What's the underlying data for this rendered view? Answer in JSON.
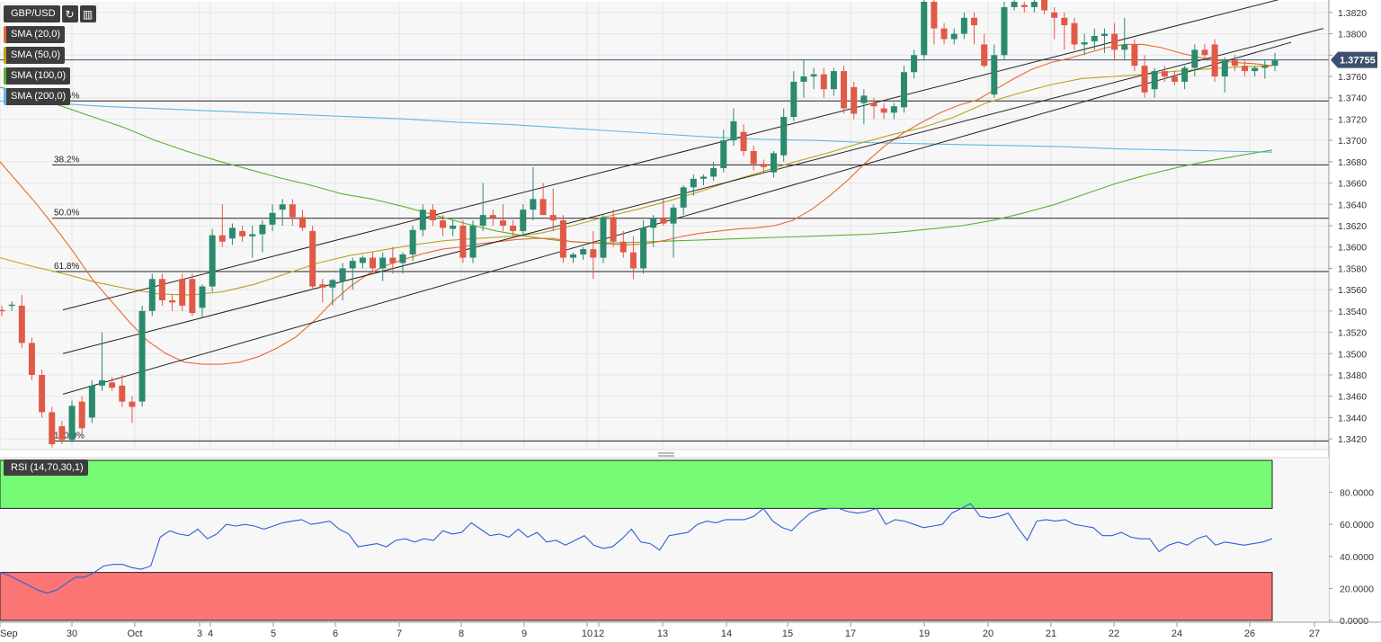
{
  "toolbar": {
    "symbol": "GBP/USD",
    "refresh_icon": "refresh-icon",
    "bars_icon": "bar-chart-icon"
  },
  "indicators": [
    {
      "label": "SMA (20,0)",
      "color": "#e8692c"
    },
    {
      "label": "SMA (50,0)",
      "color": "#b9a11c"
    },
    {
      "label": "SMA (100,0)",
      "color": "#58b12d"
    },
    {
      "label": "SMA (200,0)",
      "color": "#5fb6ea"
    }
  ],
  "rsi_label": "RSI (14,70,30,1)",
  "colors": {
    "up": "#2b8a6e",
    "down": "#e05a47",
    "sma20": "#e8692c",
    "sma50": "#b9a11c",
    "sma100": "#58b12d",
    "sma200": "#5fb6ea",
    "rsi": "#2d5fd6",
    "overbought": "#77fb77",
    "oversold": "#fc7575",
    "price_tag": "#3b4f6e"
  },
  "chart_data": [
    {
      "type": "candlestick",
      "title": "GBP/USD",
      "ylim": [
        1.341,
        1.383
      ],
      "yticks": [
        "1.3420",
        "1.3440",
        "1.3460",
        "1.3480",
        "1.3500",
        "1.3520",
        "1.3540",
        "1.3560",
        "1.3580",
        "1.3600",
        "1.3620",
        "1.3640",
        "1.3660",
        "1.3680",
        "1.3700",
        "1.3720",
        "1.3740",
        "1.3760",
        "1.3780",
        "1.3800",
        "1.3820"
      ],
      "xticks": [
        "Sep",
        "30",
        "Oct",
        "3",
        "4",
        "5",
        "6",
        "7",
        "8",
        "9",
        "10",
        "12",
        "13",
        "14",
        "15",
        "17",
        "19",
        "20",
        "21",
        "22",
        "24",
        "26",
        "27"
      ],
      "current_price": "1.37755",
      "fibonacci": [
        {
          "label": "23.6%",
          "price": 1.3737
        },
        {
          "label": "38.2%",
          "price": 1.3677
        },
        {
          "label": "50.0%",
          "price": 1.3627
        },
        {
          "label": "61.8%",
          "price": 1.3577
        },
        {
          "label": "100.0%",
          "price": 1.3418
        }
      ],
      "candles": [
        [
          1.3541,
          1.3545,
          1.3535,
          1.354
        ],
        [
          1.3545,
          1.3549,
          1.354,
          1.3546
        ],
        [
          1.3545,
          1.3555,
          1.3505,
          1.351
        ],
        [
          1.351,
          1.3515,
          1.3475,
          1.348
        ],
        [
          1.348,
          1.3485,
          1.344,
          1.3445
        ],
        [
          1.3445,
          1.345,
          1.3412,
          1.3415
        ],
        [
          1.3432,
          1.3437,
          1.3415,
          1.3419
        ],
        [
          1.3419,
          1.3456,
          1.3417,
          1.3451
        ],
        [
          1.3455,
          1.346,
          1.3425,
          1.343
        ],
        [
          1.344,
          1.3475,
          1.3435,
          1.347
        ],
        [
          1.347,
          1.352,
          1.3465,
          1.3475
        ],
        [
          1.3473,
          1.3478,
          1.3465,
          1.3468
        ],
        [
          1.347,
          1.348,
          1.345,
          1.3455
        ],
        [
          1.3455,
          1.346,
          1.3435,
          1.345
        ],
        [
          1.3455,
          1.3545,
          1.345,
          1.354
        ],
        [
          1.354,
          1.3575,
          1.3535,
          1.357
        ],
        [
          1.357,
          1.3575,
          1.3545,
          1.355
        ],
        [
          1.355,
          1.3555,
          1.354,
          1.3548
        ],
        [
          1.357,
          1.3575,
          1.354,
          1.3545
        ],
        [
          1.357,
          1.3575,
          1.3535,
          1.3538
        ],
        [
          1.3543,
          1.3565,
          1.3533,
          1.3563
        ],
        [
          1.3563,
          1.3617,
          1.3558,
          1.3611
        ],
        [
          1.3611,
          1.364,
          1.36,
          1.3605
        ],
        [
          1.3608,
          1.3622,
          1.3602,
          1.3618
        ],
        [
          1.3615,
          1.362,
          1.3605,
          1.361
        ],
        [
          1.361,
          1.362,
          1.359,
          1.3612
        ],
        [
          1.3612,
          1.3625,
          1.3595,
          1.3621
        ],
        [
          1.3621,
          1.364,
          1.3615,
          1.3632
        ],
        [
          1.3635,
          1.3645,
          1.362,
          1.364
        ],
        [
          1.364,
          1.3645,
          1.362,
          1.3628
        ],
        [
          1.3628,
          1.3635,
          1.3615,
          1.3618
        ],
        [
          1.3615,
          1.362,
          1.356,
          1.3563
        ],
        [
          1.3565,
          1.357,
          1.3548,
          1.3562
        ],
        [
          1.3562,
          1.357,
          1.3545,
          1.3569
        ],
        [
          1.3568,
          1.3585,
          1.355,
          1.358
        ],
        [
          1.358,
          1.359,
          1.356,
          1.3587
        ],
        [
          1.3585,
          1.3592,
          1.358,
          1.359
        ],
        [
          1.359,
          1.3595,
          1.3575,
          1.358
        ],
        [
          1.358,
          1.3595,
          1.3568,
          1.359
        ],
        [
          1.359,
          1.36,
          1.3575,
          1.3585
        ],
        [
          1.3585,
          1.3595,
          1.3575,
          1.3593
        ],
        [
          1.3593,
          1.362,
          1.3587,
          1.3616
        ],
        [
          1.3616,
          1.364,
          1.361,
          1.3635
        ],
        [
          1.3635,
          1.364,
          1.362,
          1.3625
        ],
        [
          1.3625,
          1.363,
          1.361,
          1.3618
        ],
        [
          1.3617,
          1.3625,
          1.361,
          1.362
        ],
        [
          1.362,
          1.3625,
          1.3585,
          1.359
        ],
        [
          1.359,
          1.3625,
          1.3585,
          1.362
        ],
        [
          1.362,
          1.366,
          1.3615,
          1.363
        ],
        [
          1.363,
          1.3635,
          1.362,
          1.3627
        ],
        [
          1.3625,
          1.364,
          1.3615,
          1.362
        ],
        [
          1.362,
          1.3625,
          1.361,
          1.3615
        ],
        [
          1.3615,
          1.364,
          1.361,
          1.3635
        ],
        [
          1.3635,
          1.3675,
          1.3625,
          1.3645
        ],
        [
          1.3645,
          1.366,
          1.363,
          1.363
        ],
        [
          1.363,
          1.3655,
          1.3615,
          1.3625
        ],
        [
          1.3625,
          1.363,
          1.3585,
          1.359
        ],
        [
          1.359,
          1.3595,
          1.3585,
          1.3593
        ],
        [
          1.3593,
          1.36,
          1.3588,
          1.3598
        ],
        [
          1.3598,
          1.3615,
          1.357,
          1.359
        ],
        [
          1.359,
          1.363,
          1.3585,
          1.3628
        ],
        [
          1.3628,
          1.3635,
          1.36,
          1.3605
        ],
        [
          1.3605,
          1.3615,
          1.359,
          1.3595
        ],
        [
          1.3595,
          1.361,
          1.357,
          1.358
        ],
        [
          1.358,
          1.3625,
          1.3575,
          1.3618
        ],
        [
          1.3618,
          1.363,
          1.36,
          1.3627
        ],
        [
          1.3627,
          1.3645,
          1.362,
          1.3622
        ],
        [
          1.3622,
          1.364,
          1.359,
          1.3637
        ],
        [
          1.3637,
          1.3658,
          1.363,
          1.3656
        ],
        [
          1.3656,
          1.3668,
          1.3648,
          1.3664
        ],
        [
          1.3664,
          1.3668,
          1.3658,
          1.3666
        ],
        [
          1.3666,
          1.368,
          1.3662,
          1.3674
        ],
        [
          1.3674,
          1.371,
          1.367,
          1.37
        ],
        [
          1.37,
          1.373,
          1.3695,
          1.3718
        ],
        [
          1.3708,
          1.3715,
          1.3685,
          1.369
        ],
        [
          1.369,
          1.3695,
          1.3672,
          1.3678
        ],
        [
          1.3678,
          1.3682,
          1.367,
          1.3675
        ],
        [
          1.367,
          1.369,
          1.3665,
          1.3688
        ],
        [
          1.3686,
          1.373,
          1.368,
          1.3722
        ],
        [
          1.3722,
          1.3765,
          1.3718,
          1.3755
        ],
        [
          1.3755,
          1.3775,
          1.374,
          1.376
        ],
        [
          1.376,
          1.3768,
          1.3748,
          1.3762
        ],
        [
          1.3762,
          1.3768,
          1.374,
          1.3748
        ],
        [
          1.3748,
          1.3768,
          1.3742,
          1.3765
        ],
        [
          1.3765,
          1.377,
          1.3725,
          1.373
        ],
        [
          1.375,
          1.3755,
          1.372,
          1.3725
        ],
        [
          1.3735,
          1.3748,
          1.3715,
          1.3742
        ],
        [
          1.3735,
          1.374,
          1.372,
          1.3732
        ],
        [
          1.373,
          1.3735,
          1.372,
          1.3726
        ],
        [
          1.3726,
          1.3735,
          1.372,
          1.3732
        ],
        [
          1.3731,
          1.377,
          1.3726,
          1.3764
        ],
        [
          1.3764,
          1.3785,
          1.3758,
          1.378
        ],
        [
          1.378,
          1.3835,
          1.3775,
          1.383
        ],
        [
          1.383,
          1.3835,
          1.379,
          1.3805
        ],
        [
          1.3805,
          1.381,
          1.379,
          1.3795
        ],
        [
          1.3795,
          1.3805,
          1.379,
          1.38
        ],
        [
          1.38,
          1.382,
          1.3795,
          1.3815
        ],
        [
          1.3815,
          1.382,
          1.379,
          1.3808
        ],
        [
          1.379,
          1.38,
          1.3768,
          1.377
        ],
        [
          1.3743,
          1.379,
          1.374,
          1.378
        ],
        [
          1.378,
          1.383,
          1.3775,
          1.3825
        ],
        [
          1.3825,
          1.3835,
          1.3822,
          1.383
        ],
        [
          1.3827,
          1.383,
          1.382,
          1.3825
        ],
        [
          1.3825,
          1.3835,
          1.382,
          1.383
        ],
        [
          1.3833,
          1.3838,
          1.3818,
          1.3822
        ],
        [
          1.382,
          1.3825,
          1.3795,
          1.3815
        ],
        [
          1.3815,
          1.382,
          1.3785,
          1.3808
        ],
        [
          1.381,
          1.3815,
          1.3785,
          1.379
        ],
        [
          1.379,
          1.38,
          1.378,
          1.3792
        ],
        [
          1.3793,
          1.3805,
          1.3785,
          1.3798
        ],
        [
          1.3798,
          1.3805,
          1.3782,
          1.38
        ],
        [
          1.38,
          1.381,
          1.3775,
          1.3785
        ],
        [
          1.3785,
          1.3815,
          1.3775,
          1.379
        ],
        [
          1.379,
          1.3795,
          1.3765,
          1.377
        ],
        [
          1.377,
          1.378,
          1.374,
          1.3745
        ],
        [
          1.3748,
          1.3768,
          1.374,
          1.3765
        ],
        [
          1.3765,
          1.377,
          1.3755,
          1.376
        ],
        [
          1.376,
          1.3765,
          1.3752,
          1.3755
        ],
        [
          1.3755,
          1.377,
          1.3748,
          1.3768
        ],
        [
          1.3768,
          1.379,
          1.376,
          1.3785
        ],
        [
          1.3785,
          1.379,
          1.3775,
          1.378
        ],
        [
          1.379,
          1.3795,
          1.3755,
          1.376
        ],
        [
          1.376,
          1.3778,
          1.3745,
          1.3775
        ],
        [
          1.3775,
          1.378,
          1.3765,
          1.377
        ],
        [
          1.377,
          1.3775,
          1.376,
          1.3765
        ],
        [
          1.3765,
          1.377,
          1.376,
          1.3768
        ],
        [
          1.3768,
          1.3775,
          1.3758,
          1.377
        ],
        [
          1.377,
          1.3782,
          1.3765,
          1.3775
        ]
      ],
      "sma20": [
        1.368,
        1.366,
        1.364,
        1.3618,
        1.3595,
        1.357,
        1.355,
        1.353,
        1.3512,
        1.35,
        1.3492,
        1.349,
        1.349,
        1.3492,
        1.3497,
        1.3505,
        1.3515,
        1.353,
        1.3548,
        1.3563,
        1.3575,
        1.3583,
        1.3589,
        1.3594,
        1.3598,
        1.36,
        1.3603,
        1.3605,
        1.3607,
        1.3608,
        1.3608,
        1.3605,
        1.3604,
        1.3603,
        1.3602,
        1.3603,
        1.3606,
        1.361,
        1.3613,
        1.3615,
        1.3617,
        1.3618,
        1.362,
        1.3625,
        1.3635,
        1.3648,
        1.3663,
        1.368,
        1.3695,
        1.3707,
        1.3717,
        1.3726,
        1.3733,
        1.3738,
        1.3748,
        1.3758,
        1.3767,
        1.3773,
        1.3777,
        1.3782,
        1.3787,
        1.379,
        1.379,
        1.3787,
        1.3782,
        1.3778,
        1.3775,
        1.3773,
        1.3772,
        1.377
      ],
      "sma50": [
        1.359,
        1.3582,
        1.3575,
        1.3567,
        1.3561,
        1.3556,
        1.3555,
        1.3558,
        1.3565,
        1.3575,
        1.3585,
        1.3592,
        1.3597,
        1.3602,
        1.3606,
        1.3608,
        1.361,
        1.3613,
        1.362,
        1.3628,
        1.3635,
        1.3643,
        1.3652,
        1.3662,
        1.3671,
        1.368,
        1.3688,
        1.3697,
        1.3705,
        1.3712,
        1.3722,
        1.3735,
        1.3744,
        1.3752,
        1.3758,
        1.376,
        1.3762,
        1.3765,
        1.3767,
        1.3769,
        1.377
      ],
      "sma100": [
        1.375,
        1.3742,
        1.3732,
        1.3722,
        1.3712,
        1.37,
        1.369,
        1.3681,
        1.3673,
        1.3665,
        1.3658,
        1.365,
        1.3645,
        1.3638,
        1.363,
        1.3622,
        1.3615,
        1.361,
        1.3606,
        1.3604,
        1.3604,
        1.3605,
        1.3606,
        1.3607,
        1.3608,
        1.3609,
        1.361,
        1.3611,
        1.3612,
        1.3614,
        1.3617,
        1.362,
        1.3625,
        1.3632,
        1.364,
        1.365,
        1.366,
        1.3668,
        1.3675,
        1.3681,
        1.3686,
        1.3691
      ],
      "sma200": [
        1.3737,
        1.3735,
        1.3732,
        1.373,
        1.3728,
        1.3726,
        1.3724,
        1.3722,
        1.372,
        1.3717,
        1.3715,
        1.3712,
        1.3709,
        1.3706,
        1.3703,
        1.3701,
        1.37,
        1.3698,
        1.3697,
        1.3696,
        1.3695,
        1.3694,
        1.3692,
        1.3691,
        1.369,
        1.3689
      ],
      "channel_lines": [
        [
          [
            1.3541,
            0.0
          ],
          [
            1.3835,
            1.0
          ]
        ],
        [
          [
            1.35,
            0.0
          ],
          [
            1.3805,
            1.0
          ]
        ],
        [
          [
            1.3462,
            0.0
          ],
          [
            1.3792,
            1.0
          ]
        ]
      ]
    },
    {
      "type": "line",
      "title": "RSI (14,70,30,1)",
      "ylim": [
        0,
        100
      ],
      "yticks": [
        "0.0000",
        "20.0000",
        "40.0000",
        "60.0000",
        "80.0000"
      ],
      "overbought": 70,
      "oversold": 30,
      "values": [
        30,
        28,
        25,
        22,
        19,
        17,
        19,
        23,
        27,
        27,
        30,
        34,
        35,
        35,
        33,
        32,
        34,
        52,
        56,
        54,
        53,
        57,
        51,
        54,
        60,
        59,
        60,
        59,
        57,
        59,
        61,
        62,
        63,
        60,
        61,
        62,
        57,
        54,
        46,
        47,
        48,
        46,
        50,
        51,
        49,
        51,
        50,
        56,
        54,
        55,
        61,
        57,
        53,
        54,
        52,
        57,
        52,
        55,
        49,
        50,
        47,
        50,
        53,
        47,
        45,
        46,
        51,
        57,
        49,
        48,
        44,
        53,
        54,
        55,
        60,
        62,
        61,
        63,
        63,
        63,
        65,
        70,
        62,
        58,
        56,
        62,
        67,
        69,
        70,
        70,
        68,
        67,
        68,
        70,
        60,
        63,
        62,
        60,
        58,
        59,
        60,
        67,
        70,
        73,
        65,
        64,
        65,
        67,
        58,
        50,
        62,
        63,
        62,
        63,
        60,
        59,
        58,
        53,
        53,
        55,
        52,
        51,
        51,
        43,
        47,
        49,
        47,
        51,
        53,
        47,
        49,
        48,
        47,
        48,
        49,
        51
      ]
    }
  ]
}
